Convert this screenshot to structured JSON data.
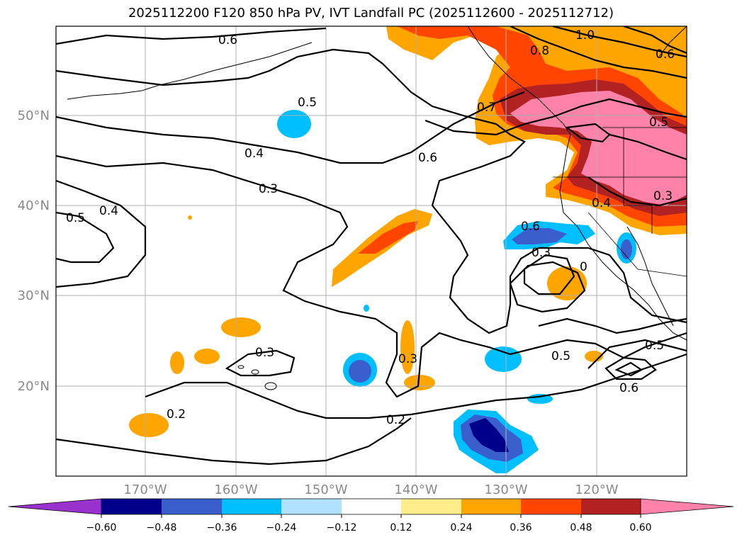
{
  "title": "2025112200 F120 850 hPa PV, IVT Landfall PC (2025112600 - 2025112712)",
  "lat_labels": [
    "50°N",
    "40°N",
    "30°N",
    "20°N"
  ],
  "lon_labels": [
    "170°W",
    "160°W",
    "150°W",
    "140°W",
    "130°W",
    "120°W"
  ],
  "colorbar": {
    "colors": [
      "#9932cc",
      "#00008b",
      "#3a5fcd",
      "#00bfff",
      "#b0e2ff",
      "#ffffff",
      "#ffec8b",
      "#ffa500",
      "#ff4500",
      "#b22222",
      "#ff82ab"
    ],
    "ticks": [
      "−0.60",
      "−0.48",
      "−0.36",
      "−0.24",
      "−0.12",
      "0.12",
      "0.24",
      "0.36",
      "0.48",
      "0.60"
    ]
  },
  "contour_labels": [
    "0.6",
    "0.5",
    "0.4",
    "0.3",
    "0.5",
    "0.4",
    "0.3",
    "0.2",
    "0.3",
    "0.2",
    "0.7",
    "0.6",
    "0.8",
    "1.0",
    "0.6",
    "0.5",
    "0.3",
    "0.4",
    "0.6",
    "0.3",
    "0",
    "0.5",
    "0.5",
    "0.6"
  ]
}
